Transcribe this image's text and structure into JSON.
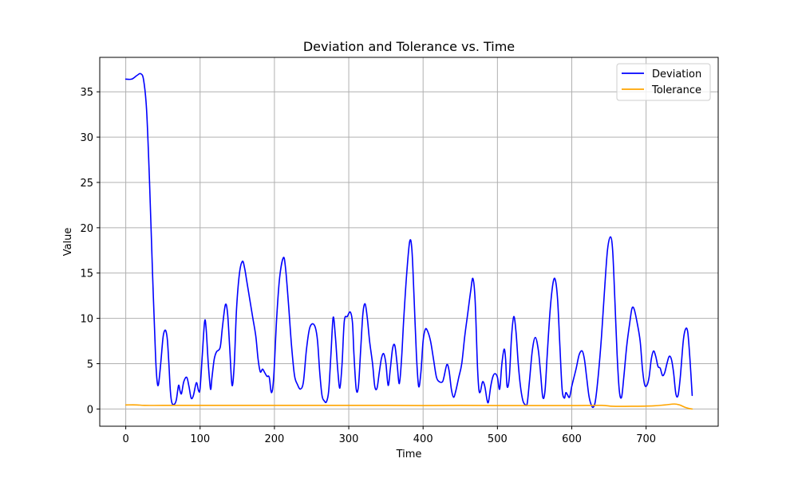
{
  "chart_data": {
    "type": "line",
    "title": "Deviation and Tolerance vs. Time",
    "xlabel": "Time",
    "ylabel": "Value",
    "xlim": [
      -35,
      797
    ],
    "ylim": [
      -1.9,
      38.8
    ],
    "xticks": [
      0,
      100,
      200,
      300,
      400,
      500,
      600,
      700
    ],
    "yticks": [
      0,
      5,
      10,
      15,
      20,
      25,
      30,
      35
    ],
    "grid": true,
    "legend_position": "top-right",
    "series": [
      {
        "name": "Deviation",
        "color": "#0000ff",
        "points": [
          [
            0,
            36.4
          ],
          [
            8,
            36.4
          ],
          [
            15,
            36.8
          ],
          [
            20,
            37.0
          ],
          [
            24,
            36.3
          ],
          [
            28,
            33.0
          ],
          [
            32,
            25.0
          ],
          [
            36,
            15.0
          ],
          [
            40,
            6.0
          ],
          [
            42,
            3.2
          ],
          [
            44,
            2.7
          ],
          [
            47,
            5.0
          ],
          [
            50,
            7.8
          ],
          [
            52,
            8.6
          ],
          [
            54,
            8.6
          ],
          [
            56,
            7.6
          ],
          [
            58,
            5.0
          ],
          [
            60,
            2.0
          ],
          [
            62,
            0.7
          ],
          [
            65,
            0.5
          ],
          [
            68,
            1.0
          ],
          [
            71,
            2.6
          ],
          [
            73,
            2.0
          ],
          [
            75,
            1.7
          ],
          [
            78,
            3.0
          ],
          [
            82,
            3.5
          ],
          [
            85,
            2.5
          ],
          [
            88,
            1.2
          ],
          [
            91,
            1.5
          ],
          [
            95,
            2.9
          ],
          [
            98,
            2.0
          ],
          [
            100,
            2.3
          ],
          [
            103,
            6.0
          ],
          [
            106,
            9.6
          ],
          [
            108,
            9.0
          ],
          [
            111,
            5.0
          ],
          [
            114,
            2.2
          ],
          [
            116,
            3.5
          ],
          [
            119,
            5.5
          ],
          [
            122,
            6.3
          ],
          [
            127,
            6.8
          ],
          [
            130,
            9.0
          ],
          [
            134,
            11.5
          ],
          [
            137,
            10.5
          ],
          [
            140,
            6.5
          ],
          [
            143,
            2.6
          ],
          [
            146,
            5.0
          ],
          [
            149,
            11.0
          ],
          [
            153,
            15.0
          ],
          [
            157,
            16.3
          ],
          [
            160,
            15.5
          ],
          [
            163,
            14.0
          ],
          [
            167,
            12.0
          ],
          [
            171,
            10.0
          ],
          [
            175,
            8.0
          ],
          [
            178,
            5.5
          ],
          [
            181,
            4.1
          ],
          [
            184,
            4.4
          ],
          [
            187,
            4.0
          ],
          [
            190,
            3.6
          ],
          [
            193,
            3.5
          ],
          [
            196,
            1.8
          ],
          [
            199,
            3.5
          ],
          [
            203,
            10.0
          ],
          [
            207,
            14.5
          ],
          [
            212,
            16.7
          ],
          [
            215,
            15.5
          ],
          [
            219,
            11.5
          ],
          [
            223,
            7.0
          ],
          [
            227,
            3.7
          ],
          [
            231,
            2.7
          ],
          [
            235,
            2.2
          ],
          [
            239,
            3.0
          ],
          [
            243,
            6.5
          ],
          [
            247,
            8.8
          ],
          [
            251,
            9.4
          ],
          [
            255,
            9.0
          ],
          [
            258,
            7.5
          ],
          [
            261,
            4.0
          ],
          [
            264,
            1.5
          ],
          [
            267,
            0.9
          ],
          [
            270,
            0.8
          ],
          [
            273,
            2.0
          ],
          [
            276,
            6.0
          ],
          [
            279,
            10.1
          ],
          [
            282,
            8.0
          ],
          [
            285,
            4.5
          ],
          [
            288,
            2.3
          ],
          [
            291,
            5.0
          ],
          [
            294,
            9.7
          ],
          [
            298,
            10.2
          ],
          [
            302,
            10.7
          ],
          [
            305,
            9.5
          ],
          [
            307,
            6.0
          ],
          [
            310,
            2.2
          ],
          [
            313,
            2.5
          ],
          [
            316,
            6.5
          ],
          [
            319,
            10.5
          ],
          [
            322,
            11.6
          ],
          [
            325,
            10.0
          ],
          [
            328,
            7.5
          ],
          [
            332,
            5.0
          ],
          [
            335,
            2.5
          ],
          [
            338,
            2.3
          ],
          [
            341,
            4.0
          ],
          [
            344,
            5.6
          ],
          [
            347,
            6.1
          ],
          [
            350,
            5.0
          ],
          [
            353,
            2.6
          ],
          [
            356,
            4.5
          ],
          [
            359,
            6.7
          ],
          [
            362,
            7.0
          ],
          [
            365,
            5.0
          ],
          [
            368,
            2.8
          ],
          [
            371,
            5.5
          ],
          [
            374,
            10.0
          ],
          [
            378,
            15.0
          ],
          [
            382,
            18.5
          ],
          [
            385,
            17.5
          ],
          [
            388,
            12.0
          ],
          [
            391,
            6.0
          ],
          [
            394,
            2.5
          ],
          [
            397,
            4.0
          ],
          [
            400,
            7.5
          ],
          [
            403,
            8.8
          ],
          [
            406,
            8.6
          ],
          [
            410,
            7.5
          ],
          [
            414,
            5.5
          ],
          [
            418,
            3.5
          ],
          [
            422,
            3.0
          ],
          [
            426,
            3.0
          ],
          [
            428,
            3.5
          ],
          [
            432,
            4.9
          ],
          [
            435,
            4.2
          ],
          [
            438,
            2.2
          ],
          [
            441,
            1.3
          ],
          [
            444,
            2.0
          ],
          [
            448,
            3.5
          ],
          [
            452,
            5.0
          ],
          [
            456,
            8.0
          ],
          [
            460,
            10.5
          ],
          [
            464,
            13.0
          ],
          [
            467,
            14.4
          ],
          [
            470,
            12.0
          ],
          [
            473,
            5.0
          ],
          [
            475,
            2.2
          ],
          [
            477,
            1.9
          ],
          [
            480,
            3.0
          ],
          [
            483,
            2.5
          ],
          [
            486,
            1.0
          ],
          [
            488,
            0.8
          ],
          [
            491,
            2.5
          ],
          [
            494,
            3.6
          ],
          [
            497,
            3.9
          ],
          [
            500,
            3.5
          ],
          [
            503,
            2.2
          ],
          [
            506,
            5.0
          ],
          [
            509,
            6.6
          ],
          [
            511,
            5.5
          ],
          [
            513,
            2.5
          ],
          [
            516,
            3.5
          ],
          [
            519,
            8.0
          ],
          [
            522,
            10.2
          ],
          [
            525,
            8.5
          ],
          [
            528,
            5.0
          ],
          [
            531,
            2.5
          ],
          [
            534,
            1.0
          ],
          [
            537,
            0.5
          ],
          [
            540,
            0.6
          ],
          [
            543,
            3.0
          ],
          [
            547,
            6.5
          ],
          [
            551,
            7.9
          ],
          [
            555,
            6.5
          ],
          [
            558,
            4.0
          ],
          [
            561,
            1.3
          ],
          [
            564,
            2.0
          ],
          [
            567,
            6.0
          ],
          [
            571,
            11.0
          ],
          [
            575,
            14.0
          ],
          [
            578,
            14.2
          ],
          [
            581,
            12.0
          ],
          [
            584,
            7.0
          ],
          [
            587,
            2.2
          ],
          [
            590,
            1.2
          ],
          [
            592,
            1.8
          ],
          [
            594,
            1.6
          ],
          [
            597,
            1.3
          ],
          [
            600,
            2.5
          ],
          [
            603,
            3.5
          ],
          [
            606,
            4.5
          ],
          [
            610,
            6.0
          ],
          [
            614,
            6.4
          ],
          [
            617,
            5.5
          ],
          [
            620,
            3.5
          ],
          [
            623,
            1.5
          ],
          [
            626,
            0.5
          ],
          [
            629,
            0.2
          ],
          [
            632,
            1.0
          ],
          [
            636,
            4.0
          ],
          [
            640,
            8.0
          ],
          [
            644,
            13.0
          ],
          [
            648,
            17.5
          ],
          [
            652,
            19.0
          ],
          [
            655,
            17.5
          ],
          [
            658,
            12.0
          ],
          [
            661,
            6.0
          ],
          [
            664,
            2.0
          ],
          [
            667,
            1.3
          ],
          [
            670,
            3.5
          ],
          [
            674,
            7.0
          ],
          [
            678,
            9.5
          ],
          [
            681,
            11.1
          ],
          [
            684,
            11.0
          ],
          [
            688,
            9.5
          ],
          [
            692,
            7.5
          ],
          [
            695,
            4.5
          ],
          [
            698,
            2.7
          ],
          [
            701,
            2.6
          ],
          [
            704,
            3.5
          ],
          [
            707,
            5.5
          ],
          [
            710,
            6.4
          ],
          [
            713,
            5.8
          ],
          [
            716,
            4.7
          ],
          [
            719,
            4.5
          ],
          [
            722,
            3.7
          ],
          [
            725,
            4.0
          ],
          [
            728,
            5.0
          ],
          [
            731,
            5.8
          ],
          [
            734,
            5.5
          ],
          [
            737,
            4.0
          ],
          [
            740,
            1.7
          ],
          [
            743,
            1.5
          ],
          [
            746,
            3.5
          ],
          [
            750,
            7.5
          ],
          [
            753,
            8.8
          ],
          [
            756,
            8.5
          ],
          [
            759,
            5.5
          ],
          [
            762,
            1.5
          ]
        ]
      },
      {
        "name": "Tolerance",
        "color": "#ffa500",
        "points": [
          [
            0,
            0.45
          ],
          [
            15,
            0.45
          ],
          [
            25,
            0.4
          ],
          [
            50,
            0.4
          ],
          [
            100,
            0.4
          ],
          [
            150,
            0.4
          ],
          [
            200,
            0.4
          ],
          [
            250,
            0.4
          ],
          [
            300,
            0.4
          ],
          [
            350,
            0.4
          ],
          [
            400,
            0.38
          ],
          [
            450,
            0.4
          ],
          [
            500,
            0.38
          ],
          [
            550,
            0.38
          ],
          [
            600,
            0.38
          ],
          [
            640,
            0.4
          ],
          [
            655,
            0.3
          ],
          [
            680,
            0.3
          ],
          [
            710,
            0.35
          ],
          [
            725,
            0.45
          ],
          [
            738,
            0.55
          ],
          [
            745,
            0.45
          ],
          [
            752,
            0.2
          ],
          [
            758,
            0.05
          ],
          [
            762,
            0.0
          ]
        ]
      }
    ]
  }
}
